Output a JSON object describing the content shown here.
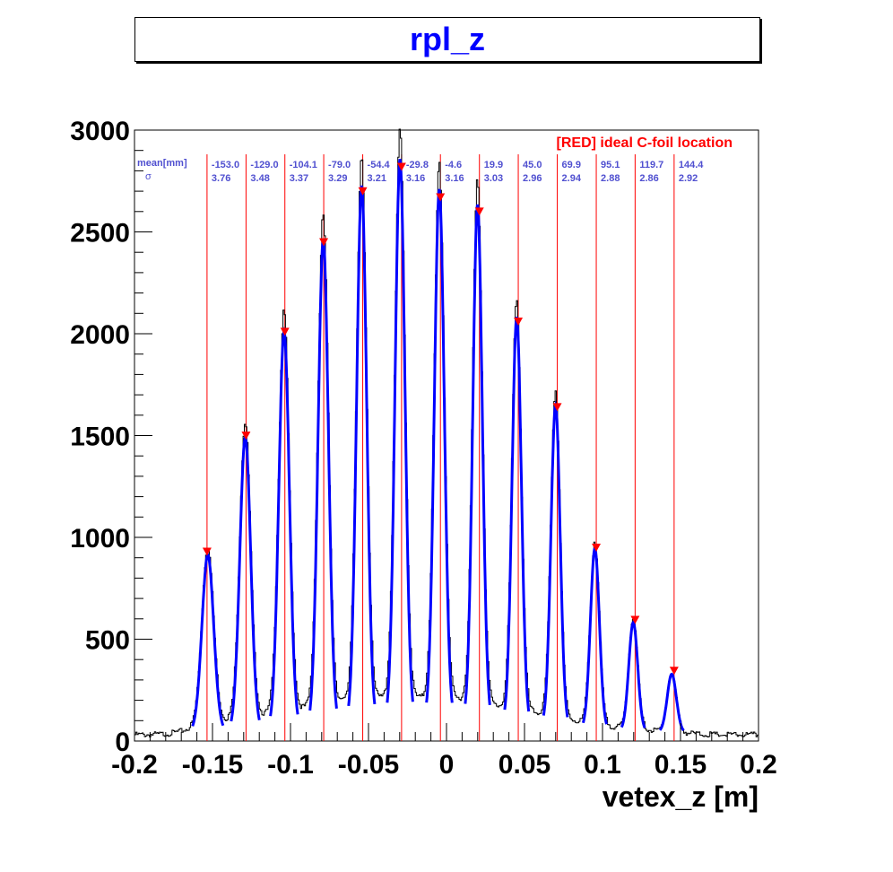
{
  "chart_data": {
    "type": "line",
    "title": "rpl_z",
    "xlabel": "vetex_z [m]",
    "ylabel": "",
    "xlim": [
      -0.2,
      0.2
    ],
    "ylim": [
      0,
      3000
    ],
    "x_tick_labels": [
      "-0.2",
      "-0.15",
      "-0.1",
      "-0.05",
      "0",
      "0.05",
      "0.1",
      "0.15",
      "0.2"
    ],
    "y_tick_labels": [
      "0",
      "500",
      "1000",
      "1500",
      "2000",
      "2500",
      "3000"
    ],
    "annotation": "[RED] ideal C-foil location",
    "stats_header_mean": "mean[mm]",
    "stats_header_sigma": "σ",
    "colors": {
      "histogram": "#000000",
      "fit": "#0000ff",
      "foil": "#ff0000",
      "stats": "#5050d0",
      "title": "#0000ff"
    },
    "peaks": [
      {
        "mean_label": "-153.0",
        "sigma_label": "3.76",
        "mean_mm": -153.0,
        "sigma_mm": 3.76,
        "height": 870,
        "foil_m": -0.1535
      },
      {
        "mean_label": "-129.0",
        "sigma_label": "3.48",
        "mean_mm": -129.0,
        "sigma_mm": 3.48,
        "height": 1440,
        "foil_m": -0.1285
      },
      {
        "mean_label": "-104.1",
        "sigma_label": "3.37",
        "mean_mm": -104.1,
        "sigma_mm": 3.37,
        "height": 1950,
        "foil_m": -0.1036
      },
      {
        "mean_label": "-79.0",
        "sigma_label": "3.29",
        "mean_mm": -79.0,
        "sigma_mm": 3.29,
        "height": 2390,
        "foil_m": -0.0787
      },
      {
        "mean_label": "-54.4",
        "sigma_label": "3.21",
        "mean_mm": -54.4,
        "sigma_mm": 3.21,
        "height": 2640,
        "foil_m": -0.0537
      },
      {
        "mean_label": "-29.8",
        "sigma_label": "3.16",
        "mean_mm": -29.8,
        "sigma_mm": 3.16,
        "height": 2760,
        "foil_m": -0.0288
      },
      {
        "mean_label": "-4.6",
        "sigma_label": "3.16",
        "mean_mm": -4.6,
        "sigma_mm": 3.16,
        "height": 2610,
        "foil_m": -0.0039
      },
      {
        "mean_label": "19.9",
        "sigma_label": "3.03",
        "mean_mm": 19.9,
        "sigma_mm": 3.03,
        "height": 2540,
        "foil_m": 0.0211
      },
      {
        "mean_label": "45.0",
        "sigma_label": "2.96",
        "mean_mm": 45.0,
        "sigma_mm": 2.96,
        "height": 2000,
        "foil_m": 0.046
      },
      {
        "mean_label": "69.9",
        "sigma_label": "2.94",
        "mean_mm": 69.9,
        "sigma_mm": 2.94,
        "height": 1580,
        "foil_m": 0.071
      },
      {
        "mean_label": "95.1",
        "sigma_label": "2.88",
        "mean_mm": 95.1,
        "sigma_mm": 2.88,
        "height": 890,
        "foil_m": 0.096
      },
      {
        "mean_label": "119.7",
        "sigma_label": "2.86",
        "mean_mm": 119.7,
        "sigma_mm": 2.86,
        "height": 535,
        "foil_m": 0.1209
      },
      {
        "mean_label": "144.4",
        "sigma_label": "2.92",
        "mean_mm": 144.4,
        "sigma_mm": 2.92,
        "height": 285,
        "foil_m": 0.1459
      }
    ]
  }
}
